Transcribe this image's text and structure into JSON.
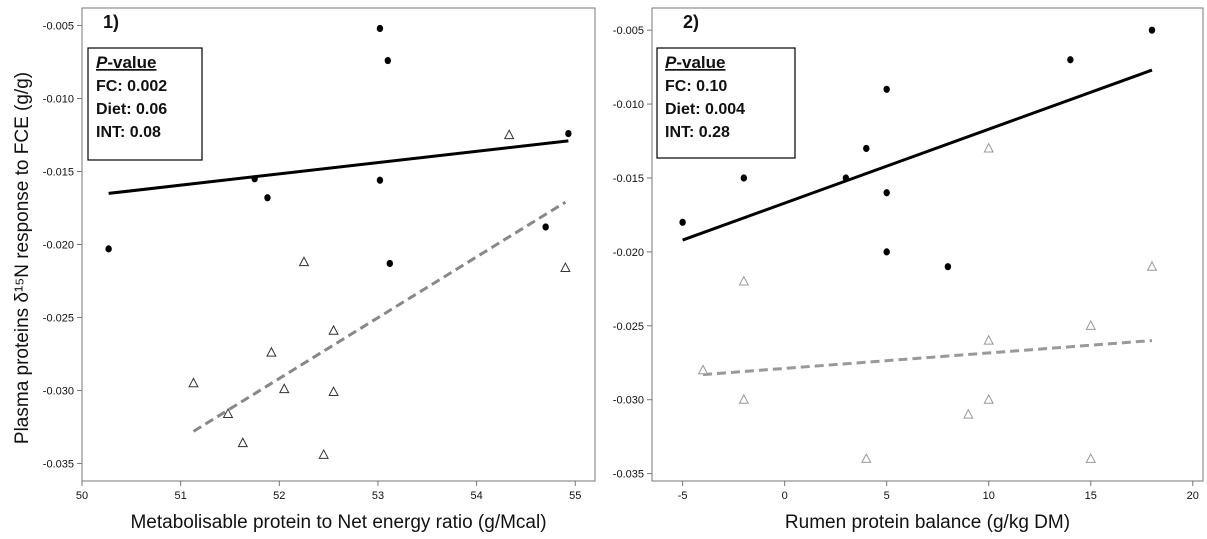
{
  "y_axis_title": "Plasma proteins δ¹⁵N response to FCE (g/g)",
  "chart_data": [
    {
      "type": "scatter",
      "panel_label": "1)",
      "xlabel": "Metabolisable protein to Net energy ratio (g/Mcal)",
      "ylabel": "Plasma proteins δ¹⁵N response to FCE (g/g)",
      "xlim": [
        50,
        55.2
      ],
      "ylim": [
        -0.0362,
        -0.0038
      ],
      "x_ticks": [
        50,
        51,
        52,
        53,
        54,
        55
      ],
      "x_tick_labels": [
        "50",
        "51",
        "52",
        "53",
        "54",
        "55"
      ],
      "y_ticks": [
        -0.035,
        -0.03,
        -0.025,
        -0.02,
        -0.015,
        -0.01,
        -0.005
      ],
      "y_tick_labels": [
        "-0.035",
        "-0.030",
        "-0.025",
        "-0.020",
        "-0.015",
        "-0.010",
        "-0.005"
      ],
      "legend": {
        "title_italic": "P",
        "title_rest": "-value",
        "rows": [
          "FC: 0.002",
          "Diet: 0.06",
          "INT: 0.08"
        ]
      },
      "series": [
        {
          "marker": "filled-circle",
          "color": "#000000",
          "points": [
            [
              50.27,
              -0.0203
            ],
            [
              51.75,
              -0.0155
            ],
            [
              51.88,
              -0.0168
            ],
            [
              53.02,
              -0.0052
            ],
            [
              53.1,
              -0.0074
            ],
            [
              53.02,
              -0.0156
            ],
            [
              53.12,
              -0.0213
            ],
            [
              54.7,
              -0.0188
            ],
            [
              54.93,
              -0.0124
            ]
          ],
          "fit": {
            "x": [
              50.27,
              54.93
            ],
            "y": [
              -0.0165,
              -0.0129
            ],
            "style": "solid",
            "color": "#000000"
          }
        },
        {
          "marker": "open-triangle",
          "color": "#333333",
          "points": [
            [
              51.13,
              -0.0295
            ],
            [
              51.48,
              -0.0316
            ],
            [
              51.63,
              -0.0336
            ],
            [
              51.92,
              -0.0274
            ],
            [
              52.05,
              -0.0299
            ],
            [
              52.25,
              -0.0212
            ],
            [
              52.45,
              -0.0344
            ],
            [
              52.55,
              -0.0259
            ],
            [
              52.55,
              -0.0301
            ],
            [
              54.33,
              -0.0125
            ],
            [
              54.9,
              -0.0216
            ]
          ],
          "fit": {
            "x": [
              51.13,
              54.9
            ],
            "y": [
              -0.0328,
              -0.0171
            ],
            "style": "dashed",
            "color": "#888888"
          }
        }
      ]
    },
    {
      "type": "scatter",
      "panel_label": "2)",
      "xlabel": "Rumen protein balance (g/kg DM)",
      "ylabel": "",
      "xlim": [
        -6.5,
        20.5
      ],
      "ylim": [
        -0.0355,
        -0.0035
      ],
      "x_ticks": [
        -5,
        0,
        5,
        10,
        15,
        20
      ],
      "x_tick_labels": [
        "-5",
        "0",
        "5",
        "10",
        "15",
        "20"
      ],
      "y_ticks": [
        -0.035,
        -0.03,
        -0.025,
        -0.02,
        -0.015,
        -0.01,
        -0.005
      ],
      "y_tick_labels": [
        "-0.035",
        "-0.030",
        "-0.025",
        "-0.020",
        "-0.015",
        "-0.010",
        "-0.005"
      ],
      "legend": {
        "title_italic": "P",
        "title_rest": "-value",
        "rows": [
          "FC: 0.10",
          "Diet: 0.004",
          "INT: 0.28"
        ]
      },
      "series": [
        {
          "marker": "filled-circle",
          "color": "#000000",
          "points": [
            [
              -5,
              -0.018
            ],
            [
              -2,
              -0.015
            ],
            [
              3,
              -0.015
            ],
            [
              4,
              -0.013
            ],
            [
              5,
              -0.009
            ],
            [
              5,
              -0.016
            ],
            [
              5,
              -0.02
            ],
            [
              8,
              -0.021
            ],
            [
              14,
              -0.007
            ],
            [
              18,
              -0.005
            ]
          ],
          "fit": {
            "x": [
              -5,
              18
            ],
            "y": [
              -0.0192,
              -0.0077
            ],
            "style": "solid",
            "color": "#000000"
          }
        },
        {
          "marker": "open-triangle",
          "color": "#999999",
          "points": [
            [
              -4,
              -0.028
            ],
            [
              -2,
              -0.022
            ],
            [
              -2,
              -0.03
            ],
            [
              4,
              -0.034
            ],
            [
              9,
              -0.031
            ],
            [
              10,
              -0.013
            ],
            [
              10,
              -0.026
            ],
            [
              10,
              -0.03
            ],
            [
              15,
              -0.025
            ],
            [
              15,
              -0.034
            ],
            [
              18,
              -0.021
            ]
          ],
          "fit": {
            "x": [
              -4,
              18
            ],
            "y": [
              -0.0283,
              -0.026
            ],
            "style": "dashed",
            "color": "#999999"
          }
        }
      ]
    }
  ]
}
